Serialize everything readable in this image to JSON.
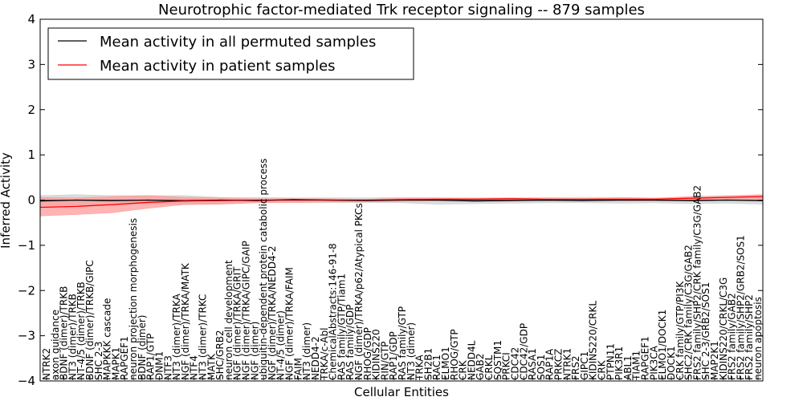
{
  "chart_data": {
    "type": "line",
    "title": "Neurotrophic factor-mediated Trk receptor signaling -- 879 samples",
    "xlabel": "Cellular Entities",
    "ylabel": "Inferred Activity",
    "ylim": [
      -4,
      4
    ],
    "yticks": [
      "4",
      "3",
      "2",
      "1",
      "0",
      "−1",
      "−2",
      "−3",
      "−4"
    ],
    "legend_position": "top-left",
    "categories": [
      "NTRK2",
      "axon guidance",
      "BDNF (dimer)/TRKB",
      "NT3 (dimer)/TRKB",
      "NT-4/5 (dimer)/TRKB",
      "BDNF (dimer)/TRKB/GIPC",
      "SHC 2-3",
      "MAPKKK cascade",
      "MAPK1",
      "RAPGEF1",
      "neuron projection morphogenesis",
      "BDNF (dimer)",
      "RAP1/GTP",
      "DNM1",
      "NTF3",
      "NT3 (dimer)/TRKA",
      "NGF (dimer)/TRKA/MATK",
      "NTF4",
      "NT3 (dimer)/TRKC",
      "MATK",
      "SHC/GRB2",
      "neuron cell development",
      "NGF (dimer)/TRKA/GRIT",
      "NGF (dimer)/TRKA/GIPC/GAIP",
      "NGF (dimer)",
      "ubiquitin-dependent protein catabolic process",
      "NGF (dimer)/TRKA/NEDD4-2",
      "NT-4/5 (dimer)",
      "NGF (dimer)/TRKA/FAIM",
      "FAIM",
      "NT3 (dimer)",
      "NEDD4-2",
      "TRKA/c-Abl",
      "ChemicalAbstracts:146-91-8",
      "RAS family/GTP/Tiam1",
      "RAS family/GDP",
      "NGF (dimer)/TRKA/p62/Atypical PKCs",
      "RHOG/GDP",
      "KIDINS220",
      "RIN/GTP",
      "RAP1/GDP",
      "RAS family/GTP",
      "NT3 (dimer)",
      "TRKA",
      "SH2B1",
      "RAC1",
      "ELMO1",
      "RHOG/GTP",
      "CRK",
      "NEDD4L",
      "GAB2",
      "CRKL",
      "SQSTM1",
      "PRKCI",
      "CDC42",
      "CDC42/GDP",
      "RASA1",
      "SOS1",
      "RAP1A",
      "PRKCZ",
      "NTRK1",
      "FRS2",
      "GIPC1",
      "KIDINS220/CRKL",
      "CRK",
      "PTPN11",
      "PIK3R1",
      "ABL1",
      "TIAM1",
      "RAPGEF1",
      "PIK3CA",
      "ELMO1/DOCK1",
      "DOCK1",
      "CRK family/GTP/PI3K",
      "SHC2/CRK family/C3G/GAB2",
      "FRS2 family/SHP2/CRK family/C3G/GAB2",
      "SHC 2-3/GRB2/SOS1",
      "MAP2K1",
      "KIDINS220/CRKL/C3G",
      "FRS2 family/GAB2",
      "FRS2 family/SHP2/GRB2/SOS1",
      "FRS2 family/SHP2",
      "neuron apoptosis"
    ],
    "label_heights": [
      0.6,
      0.82,
      1.34,
      1.22,
      1.4,
      1.54,
      1.24,
      1.48,
      0.93,
      0.86,
      2.2,
      0.87,
      0.85,
      0.74,
      0.72,
      0.75,
      1.27,
      0.68,
      0.93,
      0.66,
      1.48,
      1.93,
      1.53,
      1.77,
      0.85,
      2.95,
      1.61,
      1.37,
      1.41,
      0.74,
      0.81,
      0.74,
      1.08,
      1.5,
      1.12,
      0.93,
      1.36,
      0.81,
      0.56,
      0.81,
      0.94,
      0.97,
      0.91,
      0.62,
      0.69,
      0.61,
      0.86,
      0.86,
      0.73,
      0.64,
      0.56,
      0.56,
      0.65,
      0.61,
      0.59,
      0.81,
      0.62,
      0.56,
      0.69,
      0.62,
      0.71,
      0.57,
      0.58,
      1.13,
      0.52,
      0.59,
      0.74,
      0.61,
      0.71,
      0.78,
      0.71,
      0.98,
      0.75,
      1.29,
      1.71,
      1.71,
      1.3,
      0.8,
      1.12,
      1.1,
      1.36,
      1.36,
      1.51
    ],
    "series": [
      {
        "name": "Mean activity in all permuted samples",
        "color": "#000000",
        "band_color": "#cccccc",
        "x": [
          0,
          0.05,
          0.1,
          0.15,
          0.2,
          0.25,
          0.3,
          0.35,
          0.4,
          0.45,
          0.5,
          0.55,
          0.6,
          0.65,
          0.7,
          0.75,
          0.8,
          0.85,
          0.9,
          0.95,
          1
        ],
        "mean": [
          -0.02,
          0.0,
          -0.01,
          0.0,
          -0.02,
          0.0,
          -0.01,
          0.01,
          0.0,
          -0.01,
          0.0,
          0.0,
          -0.02,
          -0.01,
          0.0,
          -0.01,
          0.0,
          0.0,
          -0.01,
          0.0,
          -0.01
        ],
        "band_upper": [
          0.1,
          0.12,
          0.1,
          0.1,
          0.1,
          0.06,
          0.06,
          0.05,
          0.05,
          0.05,
          0.06,
          0.05,
          0.05,
          0.05,
          0.06,
          0.06,
          0.06,
          0.05,
          0.05,
          0.06,
          0.06
        ],
        "band_lower": [
          -0.12,
          -0.11,
          -0.12,
          -0.08,
          -0.1,
          -0.08,
          -0.06,
          -0.06,
          -0.06,
          -0.06,
          -0.06,
          -0.09,
          -0.08,
          -0.07,
          -0.06,
          -0.06,
          -0.07,
          -0.06,
          -0.08,
          -0.07,
          -0.09
        ]
      },
      {
        "name": "Mean activity in patient samples",
        "color": "#ff0000",
        "band_color": "#ff9999",
        "x": [
          0,
          0.05,
          0.1,
          0.15,
          0.2,
          0.25,
          0.3,
          0.35,
          0.4,
          0.45,
          0.5,
          0.55,
          0.6,
          0.65,
          0.7,
          0.75,
          0.8,
          0.85,
          0.9,
          0.95,
          1
        ],
        "mean": [
          -0.16,
          -0.14,
          -0.1,
          -0.05,
          -0.02,
          -0.01,
          0.0,
          0.0,
          0.0,
          0.0,
          0.01,
          0.02,
          0.02,
          0.03,
          0.02,
          0.02,
          0.02,
          0.02,
          0.04,
          0.06,
          0.08
        ],
        "band_upper": [
          0.06,
          0.05,
          0.08,
          0.1,
          0.06,
          0.05,
          0.03,
          0.03,
          0.03,
          0.02,
          0.04,
          0.05,
          0.04,
          0.05,
          0.03,
          0.03,
          0.05,
          0.04,
          0.08,
          0.1,
          0.12
        ],
        "band_lower": [
          -0.35,
          -0.32,
          -0.28,
          -0.18,
          -0.1,
          -0.09,
          -0.06,
          -0.05,
          -0.04,
          -0.03,
          -0.03,
          -0.02,
          -0.01,
          -0.01,
          -0.02,
          -0.01,
          -0.02,
          -0.02,
          -0.01,
          0.01,
          0.03
        ]
      }
    ]
  }
}
